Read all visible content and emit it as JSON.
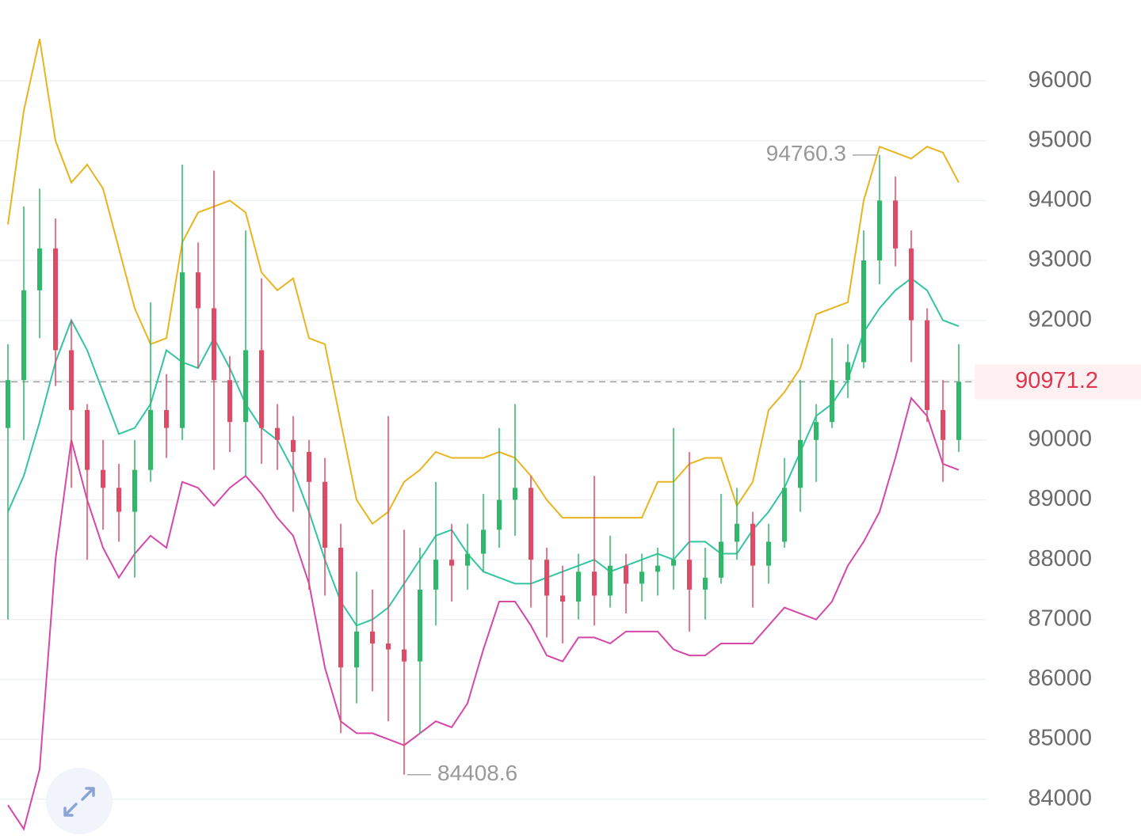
{
  "chart_data": {
    "type": "candlestick",
    "ylim": [
      83400,
      97350
    ],
    "yticks": [
      84000,
      85000,
      86000,
      87000,
      88000,
      89000,
      90000,
      91000,
      92000,
      93000,
      94000,
      95000,
      96000
    ],
    "grid": true,
    "up_color": "#2fb86a",
    "down_color": "#df4a64",
    "open": [
      90200,
      91000,
      92500,
      93200,
      91500,
      90500,
      89500,
      89200,
      88800,
      89500,
      90500,
      90200,
      92800,
      92200,
      91000,
      90300,
      91500,
      90200,
      90000,
      89800,
      89300,
      88200,
      86200,
      86800,
      86600,
      86500,
      86300,
      87500,
      88000,
      87900,
      88100,
      88500,
      89000,
      89200,
      88000,
      87400,
      87300,
      87800,
      87400,
      87900,
      87600,
      87800,
      87900,
      88000,
      87500,
      87700,
      88300,
      88600,
      87900,
      88300,
      89200,
      90000,
      90300,
      91000,
      91300,
      93000,
      94000,
      93200,
      92000,
      90500,
      90000
    ],
    "high": [
      91600,
      93900,
      94200,
      93700,
      92000,
      90600,
      90000,
      89600,
      90000,
      92300,
      91100,
      94600,
      93300,
      94500,
      91400,
      93500,
      92700,
      90600,
      90400,
      90000,
      89700,
      88600,
      87800,
      87500,
      90400,
      88500,
      88200,
      89300,
      88600,
      88600,
      89100,
      90200,
      90600,
      89400,
      88200,
      87900,
      88100,
      89400,
      88400,
      88100,
      88100,
      88200,
      90200,
      89800,
      88200,
      89100,
      89200,
      88800,
      88600,
      89700,
      91000,
      90600,
      91700,
      91600,
      93500,
      94760.3,
      94400,
      93500,
      92200,
      91000,
      91600
    ],
    "low": [
      87000,
      90000,
      91700,
      90900,
      89200,
      88000,
      88500,
      88300,
      87700,
      89300,
      89700,
      90000,
      91200,
      89500,
      89800,
      89400,
      89600,
      89500,
      88800,
      87500,
      87400,
      85100,
      85600,
      85800,
      85300,
      84408.6,
      85100,
      86900,
      87300,
      87500,
      87800,
      88200,
      88400,
      87200,
      86700,
      86600,
      87000,
      86900,
      87200,
      87100,
      87300,
      87400,
      87500,
      86800,
      87000,
      87600,
      88000,
      87200,
      87600,
      88200,
      88800,
      89300,
      90200,
      90700,
      91200,
      92600,
      92900,
      91300,
      90300,
      89300,
      89800
    ],
    "close": [
      91000,
      92500,
      93200,
      91500,
      90500,
      89500,
      89200,
      88800,
      89500,
      90500,
      90200,
      92800,
      92200,
      91000,
      90300,
      91500,
      90200,
      90000,
      89800,
      89300,
      88200,
      86200,
      86800,
      86600,
      86500,
      86300,
      87500,
      88000,
      87900,
      88100,
      88500,
      89000,
      89200,
      88000,
      87400,
      87300,
      87800,
      87400,
      87900,
      87600,
      87800,
      87900,
      88000,
      87500,
      87700,
      88300,
      88600,
      87900,
      88300,
      89200,
      90000,
      90300,
      91000,
      91300,
      93000,
      94000,
      93200,
      92000,
      90500,
      90000,
      90971.2
    ],
    "bands": [
      {
        "color": "#e8b520",
        "values": [
          93600,
          95500,
          96700,
          95000,
          94300,
          94600,
          94200,
          93200,
          92200,
          91600,
          91700,
          93300,
          93800,
          93900,
          94000,
          93800,
          92800,
          92500,
          92700,
          91700,
          91600,
          90300,
          89000,
          88600,
          88800,
          89300,
          89500,
          89800,
          89700,
          89700,
          89700,
          89800,
          89700,
          89400,
          89000,
          88700,
          88700,
          88700,
          88700,
          88700,
          88700,
          89300,
          89300,
          89600,
          89700,
          89700,
          88900,
          89300,
          90500,
          90800,
          91200,
          92100,
          92200,
          92300,
          94000,
          94900,
          94800,
          94700,
          94900,
          94800,
          94300
        ]
      },
      {
        "color": "#33c4a4",
        "values": [
          88800,
          89400,
          90300,
          91300,
          92000,
          91500,
          90800,
          90100,
          90200,
          90600,
          91500,
          91300,
          91200,
          91700,
          91200,
          90600,
          90200,
          90000,
          89500,
          88800,
          88000,
          87300,
          86900,
          87000,
          87200,
          87600,
          88000,
          88400,
          88500,
          88100,
          87800,
          87700,
          87600,
          87600,
          87700,
          87800,
          87900,
          88000,
          87800,
          87900,
          88000,
          88100,
          88000,
          88300,
          88300,
          88100,
          88100,
          88500,
          88800,
          89200,
          89800,
          90400,
          90600,
          91000,
          91800,
          92200,
          92500,
          92700,
          92500,
          92000,
          91900
        ]
      },
      {
        "color": "#d648a8",
        "values": [
          83900,
          83500,
          84500,
          88000,
          90000,
          89000,
          88200,
          87700,
          88100,
          88400,
          88200,
          89300,
          89200,
          88900,
          89200,
          89400,
          89100,
          88700,
          88400,
          87600,
          86200,
          85300,
          85100,
          85100,
          85000,
          84900,
          85100,
          85300,
          85200,
          85600,
          86500,
          87300,
          87300,
          86900,
          86400,
          86300,
          86700,
          86700,
          86600,
          86800,
          86800,
          86800,
          86500,
          86400,
          86400,
          86600,
          86600,
          86600,
          86900,
          87200,
          87100,
          87000,
          87300,
          87900,
          88300,
          88800,
          89700,
          90700,
          90400,
          89600,
          89500
        ]
      }
    ],
    "max_label": 94760.3,
    "min_label": 84408.6,
    "last_price": 90971.2
  }
}
